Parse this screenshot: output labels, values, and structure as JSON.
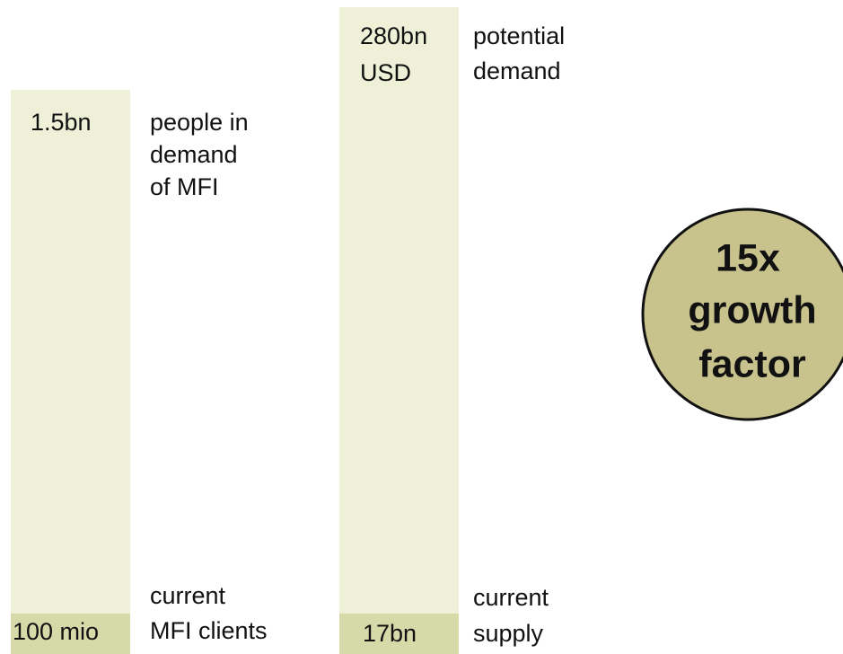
{
  "left_column": {
    "total": "1.5bn",
    "total_label": [
      "people in",
      "demand",
      "of MFI"
    ],
    "current": "100 mio",
    "current_label": [
      "current",
      "MFI clients"
    ]
  },
  "right_column": {
    "total": [
      "280bn",
      "USD"
    ],
    "total_label": [
      "potential",
      "demand"
    ],
    "current": "17bn",
    "current_label": [
      "current",
      "supply"
    ]
  },
  "badge": [
    "15x",
    "growth",
    "factor"
  ]
}
